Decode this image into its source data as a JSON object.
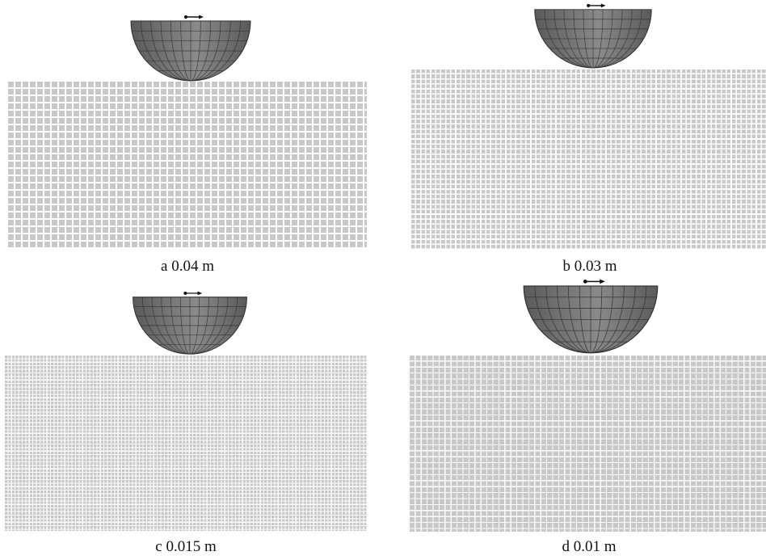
{
  "panels": [
    {
      "id": "a",
      "caption": "a 0.04 m",
      "spacing_m": 0.04
    },
    {
      "id": "b",
      "caption": "b 0.03 m",
      "spacing_m": 0.03
    },
    {
      "id": "c",
      "caption": "c 0.015 m",
      "spacing_m": 0.015
    },
    {
      "id": "d",
      "caption": "d 0.01 m",
      "spacing_m": 0.01
    }
  ],
  "colors": {
    "particle": "#c8c8c8",
    "bucket_fill": "#5a5a5a",
    "bucket_light": "#8a8a8a",
    "bucket_lines": "#2e2e2e",
    "arrow": "#111111"
  }
}
